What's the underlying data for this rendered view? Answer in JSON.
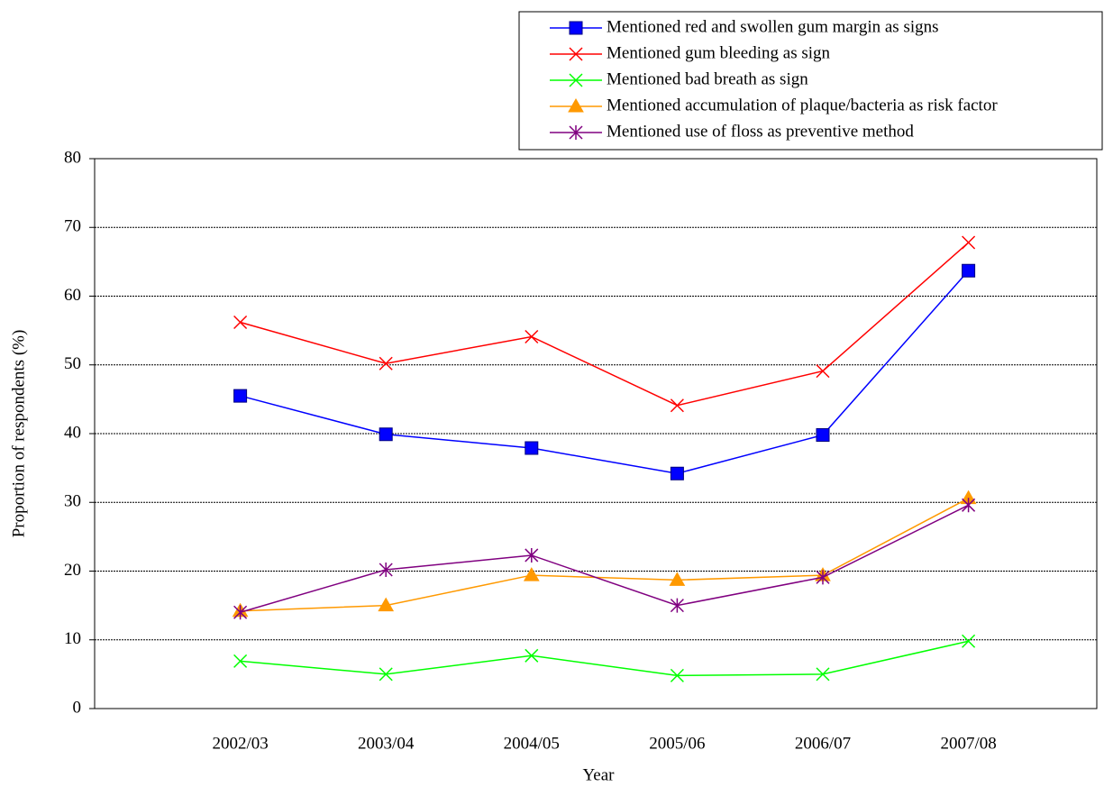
{
  "chart_data": {
    "type": "line",
    "x_label": "Year",
    "y_label": "Proportion of respondents (%)",
    "categories": [
      "2002/03",
      "2003/04",
      "2004/05",
      "2005/06",
      "2006/07",
      "2007/08"
    ],
    "ylim": [
      0,
      80
    ],
    "yticks": [
      0,
      10,
      20,
      30,
      40,
      50,
      60,
      70,
      80
    ],
    "grid": true,
    "legend": "top-right",
    "series": [
      {
        "name": "Mentioned red and swollen gum margin as signs",
        "color": "#0000ff",
        "marker": "square",
        "values": [
          45.5,
          39.9,
          37.9,
          34.2,
          39.8,
          63.7
        ]
      },
      {
        "name": "Mentioned gum bleeding as sign",
        "color": "#ff0000",
        "marker": "x",
        "values": [
          56.2,
          50.2,
          54.1,
          44.1,
          49.1,
          67.8
        ]
      },
      {
        "name": "Mentioned bad breath as sign",
        "color": "#00ff00",
        "marker": "x",
        "values": [
          6.9,
          5.0,
          7.7,
          4.8,
          5.0,
          9.8
        ]
      },
      {
        "name": "Mentioned accumulation of plaque/bacteria as risk factor",
        "color": "#ff9900",
        "marker": "triangle",
        "values": [
          14.2,
          15.0,
          19.4,
          18.7,
          19.4,
          30.6
        ]
      },
      {
        "name": "Mentioned use of floss as preventive method",
        "color": "#800080",
        "marker": "asterisk",
        "values": [
          14.0,
          20.2,
          22.3,
          15.0,
          19.1,
          29.6
        ]
      }
    ]
  }
}
